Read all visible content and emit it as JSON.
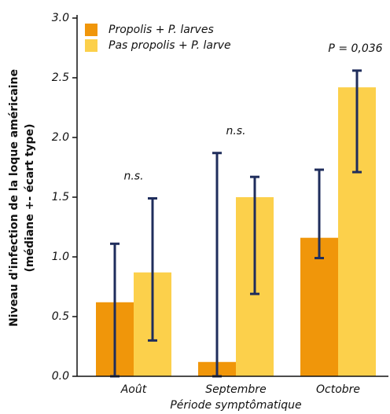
{
  "chart_data": {
    "type": "bar",
    "xlabel": "Période symptômatique",
    "ylabel": [
      "Niveau d'infection de la loque américaine",
      "(médiane +- écart type)"
    ],
    "categories": [
      "Août",
      "Septembre",
      "Octobre"
    ],
    "series": [
      {
        "name": "Propolis + P. larves",
        "color": "#f0960a",
        "values": [
          0.62,
          0.12,
          1.16
        ],
        "error_low": [
          0.0,
          0.0,
          0.99
        ],
        "error_high": [
          1.11,
          1.87,
          1.73
        ]
      },
      {
        "name": "Pas propolis + P. larve",
        "color": "#fcd04b",
        "values": [
          0.87,
          1.5,
          2.42
        ],
        "error_low": [
          0.3,
          0.69,
          1.71
        ],
        "error_high": [
          1.49,
          1.67,
          2.56
        ]
      }
    ],
    "error_color": "#1f2d5c",
    "annotations": [
      "n.s.",
      "n.s.",
      "P = 0,036"
    ],
    "ylim": [
      0,
      3.0
    ],
    "yticks": [
      {
        "value": 0,
        "label": "0.0"
      },
      0.5,
      {
        "value": 1,
        "label": "1.0"
      },
      1.5,
      {
        "value": 2,
        "label": "2.0"
      },
      2.5,
      {
        "value": 3,
        "label": "3.0"
      }
    ],
    "legend": "top-left"
  }
}
